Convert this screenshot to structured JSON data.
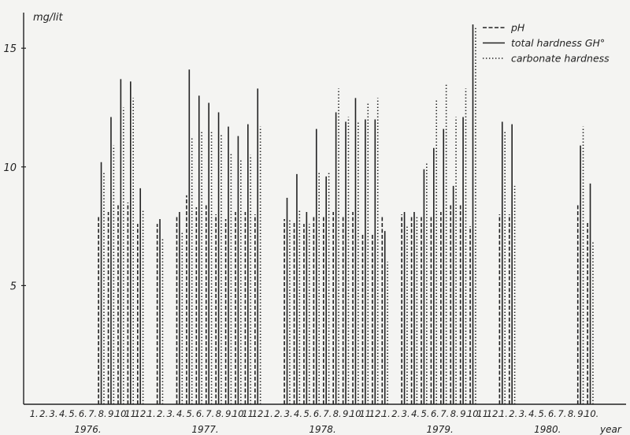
{
  "chart_data": {
    "type": "bar",
    "ylabel": "mg/lit",
    "xlabel": "year",
    "ylim": [
      0,
      16.5
    ],
    "y_ticks": [
      5,
      10,
      15
    ],
    "grid": false,
    "legend_position": "top-right",
    "series": [
      {
        "name": "pH",
        "style": "dashed"
      },
      {
        "name": "total hardness GH°",
        "style": "solid"
      },
      {
        "name": "carbonate hardness",
        "style": "dotted"
      }
    ],
    "month_labels": [
      "1.",
      "2.",
      "3.",
      "4.",
      "5.",
      "6.",
      "7.",
      "8.",
      "9.",
      "10.",
      "11.",
      "12."
    ],
    "years": [
      {
        "label": "1976.",
        "months": 12
      },
      {
        "label": "1977.",
        "months": 12
      },
      {
        "label": "1978.",
        "months": 12
      },
      {
        "label": "1979.",
        "months": 12
      },
      {
        "label": "1980.",
        "months": 10
      }
    ],
    "observations": [
      {
        "period": "1976.8.",
        "ph": 7.9,
        "gh": 10.2,
        "kh": 9.8
      },
      {
        "period": "1976.9.",
        "ph": 8.1,
        "gh": 12.1,
        "kh": 10.9
      },
      {
        "period": "1976.10.",
        "ph": 8.4,
        "gh": 13.7,
        "kh": 12.5
      },
      {
        "period": "1976.11.",
        "ph": 8.5,
        "gh": 13.6,
        "kh": 12.9
      },
      {
        "period": "1976.12.",
        "ph": 7.6,
        "gh": 9.1,
        "kh": 8.2
      },
      {
        "period": "1977.2.",
        "ph": 7.6,
        "gh": 7.8,
        "kh": 7.0
      },
      {
        "period": "1977.4.",
        "ph": 7.9,
        "gh": 8.1,
        "kh": 7.3
      },
      {
        "period": "1977.5.",
        "ph": 8.8,
        "gh": 14.1,
        "kh": 11.2
      },
      {
        "period": "1977.6.",
        "ph": 8.3,
        "gh": 13.0,
        "kh": 11.5
      },
      {
        "period": "1977.7.",
        "ph": 8.4,
        "gh": 12.7,
        "kh": 11.5
      },
      {
        "period": "1977.8.",
        "ph": 8.0,
        "gh": 12.3,
        "kh": 11.4
      },
      {
        "period": "1977.9.",
        "ph": 7.8,
        "gh": 11.7,
        "kh": 10.6
      },
      {
        "period": "1977.10.",
        "ph": 8.1,
        "gh": 11.3,
        "kh": 10.3
      },
      {
        "period": "1977.11.",
        "ph": 8.1,
        "gh": 11.8,
        "kh": 10.5
      },
      {
        "period": "1977.12.",
        "ph": 8.0,
        "gh": 13.3,
        "kh": 11.7
      },
      {
        "period": "1978.3.",
        "ph": 7.8,
        "gh": 8.7,
        "kh": 7.8
      },
      {
        "period": "1978.4.",
        "ph": 7.7,
        "gh": 9.7,
        "kh": 8.2
      },
      {
        "period": "1978.5.",
        "ph": 7.6,
        "gh": 8.1,
        "kh": 7.6
      },
      {
        "period": "1978.6.",
        "ph": 7.9,
        "gh": 11.6,
        "kh": 9.8
      },
      {
        "period": "1978.7.",
        "ph": 7.9,
        "gh": 9.6,
        "kh": 9.8
      },
      {
        "period": "1978.8.",
        "ph": 8.1,
        "gh": 12.3,
        "kh": 13.3
      },
      {
        "period": "1978.9.",
        "ph": 7.9,
        "gh": 11.9,
        "kh": 12.1
      },
      {
        "period": "1978.10.",
        "ph": 8.1,
        "gh": 12.9,
        "kh": 11.9
      },
      {
        "period": "1978.11.",
        "ph": 7.2,
        "gh": 12.0,
        "kh": 12.7
      },
      {
        "period": "1978.12.",
        "ph": 7.2,
        "gh": 12.0,
        "kh": 12.9
      },
      {
        "period": "1979.1.",
        "ph": 7.9,
        "gh": 7.3,
        "kh": 6.0
      },
      {
        "period": "1979.3.",
        "ph": 8.0,
        "gh": 8.1,
        "kh": 7.5
      },
      {
        "period": "1979.4.",
        "ph": 7.9,
        "gh": 8.1,
        "kh": 7.9
      },
      {
        "period": "1979.5.",
        "ph": 7.9,
        "gh": 9.9,
        "kh": 10.2
      },
      {
        "period": "1979.6.",
        "ph": 7.9,
        "gh": 10.8,
        "kh": 12.8
      },
      {
        "period": "1979.7.",
        "ph": 8.1,
        "gh": 11.6,
        "kh": 13.5
      },
      {
        "period": "1979.8.",
        "ph": 8.4,
        "gh": 9.2,
        "kh": 12.1
      },
      {
        "period": "1979.9.",
        "ph": 8.4,
        "gh": 12.1,
        "kh": 13.3
      },
      {
        "period": "1979.10.",
        "ph": 7.5,
        "gh": 16.0,
        "kh": 15.9
      },
      {
        "period": "1980.1.",
        "ph": 8.0,
        "gh": 11.9,
        "kh": 11.5
      },
      {
        "period": "1980.2.",
        "ph": 8.0,
        "gh": 11.8,
        "kh": 9.2
      },
      {
        "period": "1980.9.",
        "ph": 8.4,
        "gh": 10.9,
        "kh": 11.7
      },
      {
        "period": "1980.10.",
        "ph": 7.7,
        "gh": 9.3,
        "kh": 6.9
      }
    ]
  }
}
